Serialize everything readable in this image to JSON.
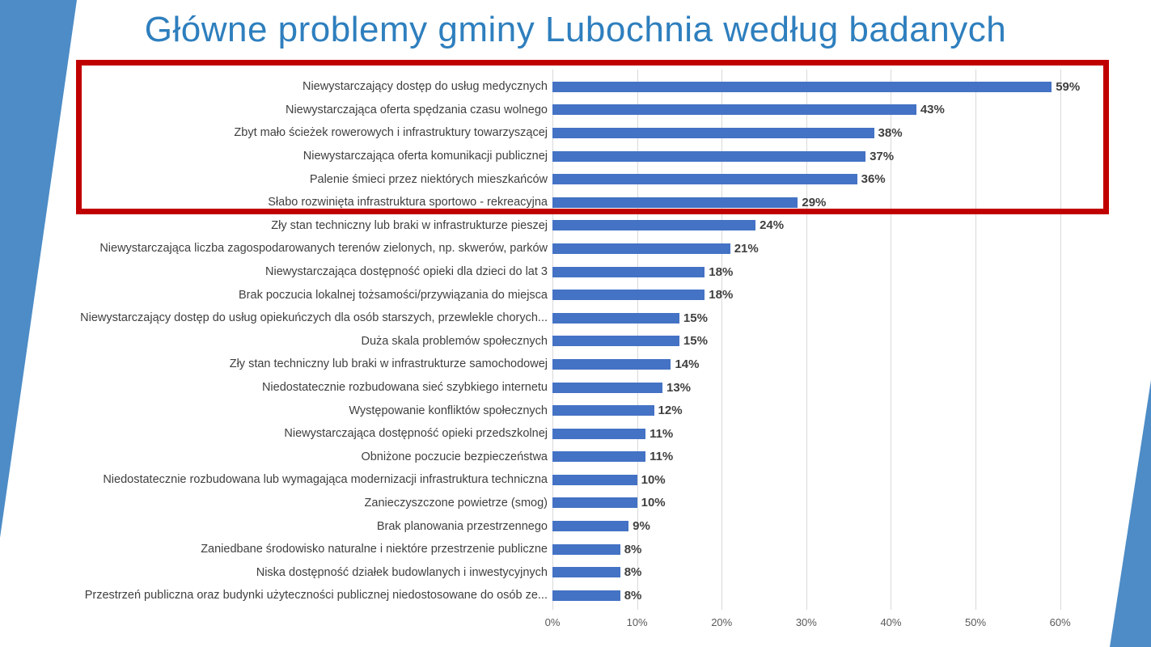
{
  "title": "Główne problemy gminy Lubochnia według badanych",
  "colors": {
    "title": "#2e7fbe",
    "bar": "#4472c4",
    "highlight_border": "#c00000",
    "accent_wedge": "#4d8cc6",
    "gridline": "#d9d9d9",
    "axis_text": "#595959",
    "label_text": "#3f3f3f",
    "value_text": "#404040"
  },
  "chart_data": {
    "type": "bar",
    "orientation": "horizontal",
    "title": "Główne problemy gminy Lubochnia według badanych",
    "xlabel": "",
    "ylabel": "",
    "xlim": [
      0,
      65
    ],
    "grid": "vertical",
    "legend": "none",
    "categories": [
      "Niewystarczający dostęp do usług medycznych",
      "Niewystarczająca oferta spędzania czasu wolnego",
      "Zbyt mało ścieżek rowerowych i infrastruktury towarzyszącej",
      "Niewystarczająca oferta komunikacji publicznej",
      "Palenie śmieci przez niektórych mieszkańców",
      "Słabo rozwinięta infrastruktura sportowo - rekreacyjna",
      "Zły stan techniczny lub braki w infrastrukturze pieszej",
      "Niewystarczająca liczba zagospodarowanych terenów zielonych, np. skwerów, parków",
      "Niewystarczająca dostępność opieki dla dzieci do lat 3",
      "Brak poczucia lokalnej tożsamości/przywiązania do miejsca",
      "Niewystarczający dostęp do usług opiekuńczych dla osób starszych, przewlekle chorych...",
      "Duża skala problemów społecznych",
      "Zły stan techniczny lub braki w infrastrukturze samochodowej",
      "Niedostatecznie rozbudowana sieć szybkiego internetu",
      "Występowanie konfliktów społecznych",
      "Niewystarczająca dostępność opieki przedszkolnej",
      "Obniżone poczucie bezpieczeństwa",
      "Niedostatecznie rozbudowana lub wymagająca modernizacji infrastruktura techniczna",
      "Zanieczyszczone powietrze (smog)",
      "Brak planowania przestrzennego",
      "Zaniedbane środowisko naturalne i niektóre przestrzenie publiczne",
      "Niska dostępność działek budowlanych i inwestycyjnych",
      "Przestrzeń publiczna oraz budynki użyteczności publicznej niedostosowane do osób ze..."
    ],
    "values": [
      59,
      43,
      38,
      37,
      36,
      29,
      24,
      21,
      18,
      18,
      15,
      15,
      14,
      13,
      12,
      11,
      11,
      10,
      10,
      9,
      8,
      8,
      8
    ],
    "value_labels": [
      "59%",
      "43%",
      "38%",
      "37%",
      "36%",
      "29%",
      "24%",
      "21%",
      "18%",
      "18%",
      "15%",
      "15%",
      "14%",
      "13%",
      "12%",
      "11%",
      "11%",
      "10%",
      "10%",
      "9%",
      "8%",
      "8%",
      "8%"
    ],
    "x_ticks": [
      "0%",
      "10%",
      "20%",
      "30%",
      "40%",
      "50%",
      "60%"
    ],
    "x_tick_values": [
      0,
      10,
      20,
      30,
      40,
      50,
      60
    ],
    "highlighted_rows": [
      0,
      1,
      2,
      3,
      4,
      5
    ]
  }
}
